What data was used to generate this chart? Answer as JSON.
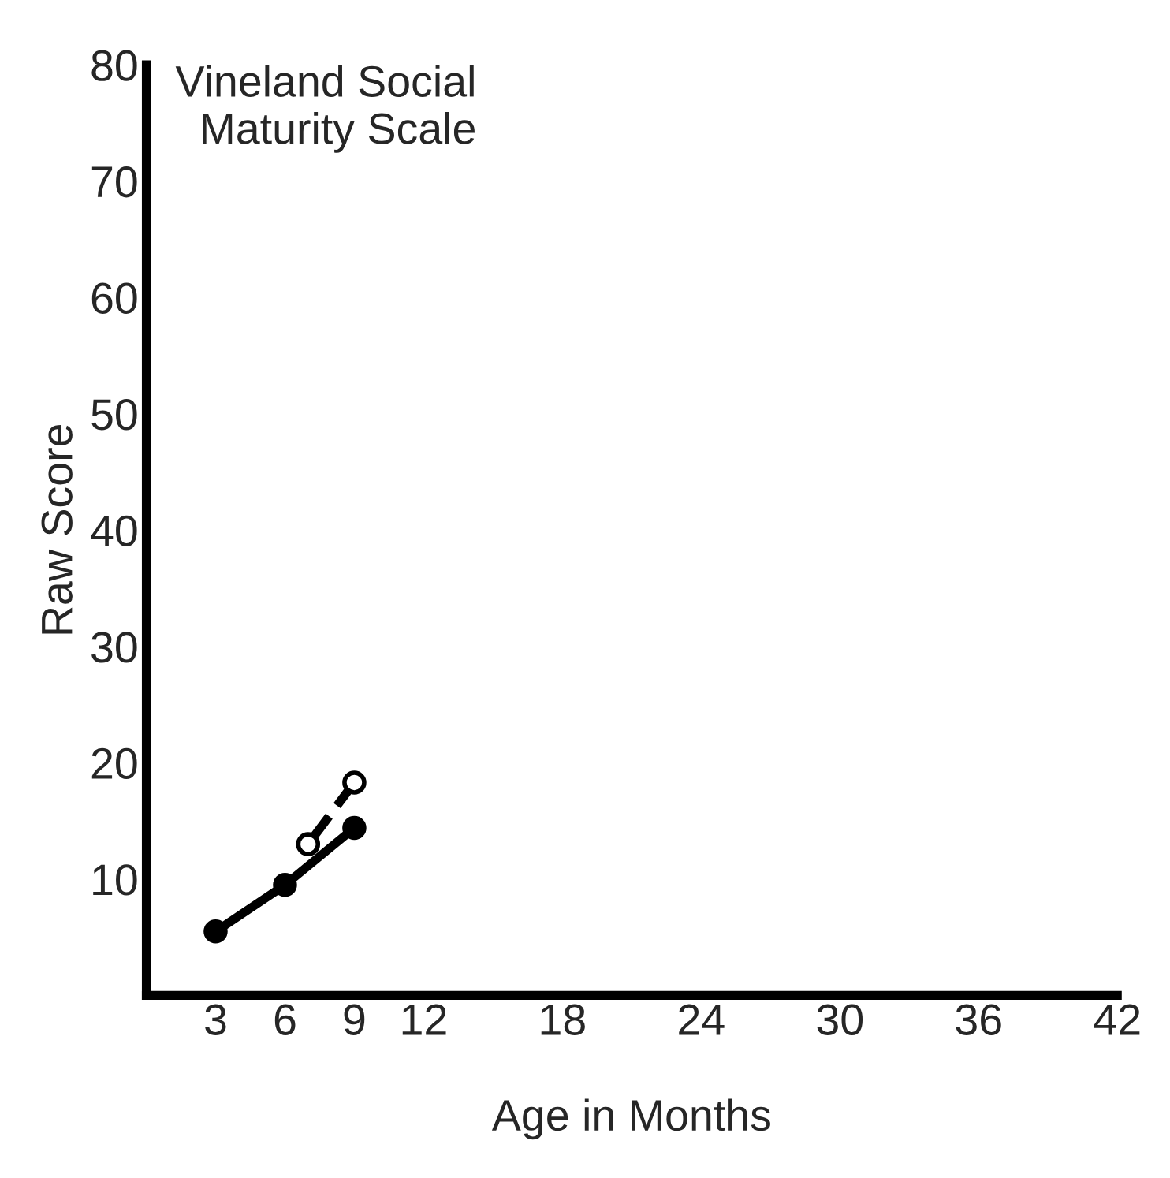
{
  "chart_data": {
    "type": "line",
    "title": "Vineland Social\nMaturity Scale",
    "xlabel": "Age in Months",
    "ylabel": "Raw Score",
    "xlim": [
      0,
      42
    ],
    "xticks": [
      3,
      6,
      9,
      12,
      18,
      24,
      30,
      36,
      42
    ],
    "ylim": [
      0,
      80
    ],
    "yticks": [
      {
        "value": 0,
        "label": null
      },
      10,
      20,
      30,
      40,
      50,
      60,
      70,
      80
    ],
    "grid": false,
    "legend": false,
    "series": [
      {
        "color": "#000000",
        "x": [
          3,
          6,
          9
        ],
        "values": [
          5.5,
          9.5,
          14.4
        ],
        "marker": "circle",
        "line_style": "solid"
      },
      {
        "color": "#000000",
        "x": [
          7,
          9
        ],
        "values": [
          13,
          18.3
        ],
        "marker": "circle",
        "line_style": "dashed"
      }
    ]
  }
}
